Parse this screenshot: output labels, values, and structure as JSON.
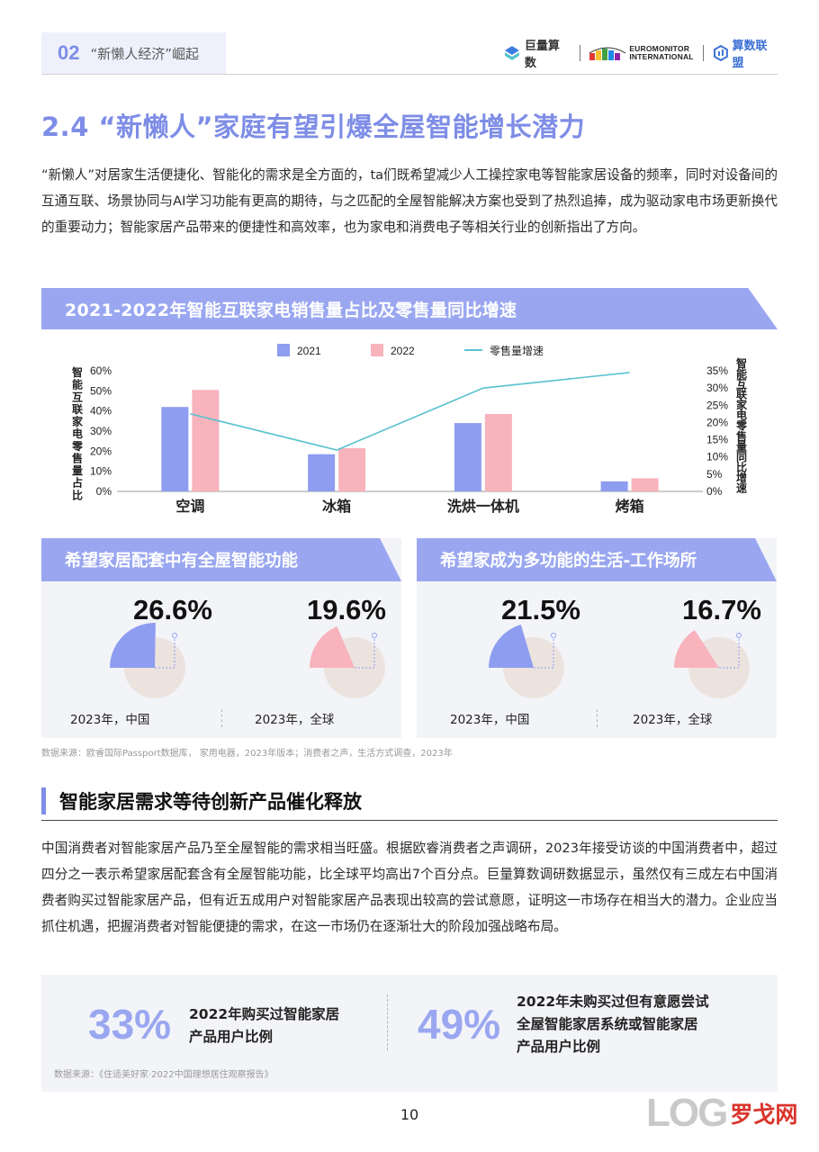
{
  "header": {
    "section_num": "02",
    "section_title": "“新懒人经济”崛起",
    "logos": [
      {
        "name": "巨量算数"
      },
      {
        "name": "EUROMONITOR INTERNATIONAL",
        "line1": "EUROMONITOR",
        "line2": "INTERNATIONAL"
      },
      {
        "name": "算数联盟"
      }
    ]
  },
  "section": {
    "title": "2.4 “新懒人”家庭有望引爆全屋智能增长潜力",
    "intro": "“新懒人”对居家生活便捷化、智能化的需求是全方面的，ta们既希望减少人工操控家电等智能家居设备的频率，同时对设备间的互通互联、场景协同与AI学习功能有更高的期待，与之匹配的全屋智能解决方案也受到了热烈追捧，成为驱动家电市场更新换代的重要动力；智能家居产品带来的便捷性和高效率，也为家电和消费电子等相关行业的创新指出了方向。"
  },
  "chart_data": [
    {
      "type": "bar",
      "title": "2021-2022年智能互联家电销售量占比及零售量同比增速",
      "categories": [
        "空调",
        "冰箱",
        "洗烘一体机",
        "烤箱"
      ],
      "series": [
        {
          "name": "2021",
          "values": [
            42,
            18.5,
            34,
            5
          ],
          "color": "#8e9df0"
        },
        {
          "name": "2022",
          "values": [
            50.5,
            21.5,
            38.5,
            6.5
          ],
          "color": "#f8b3bd"
        },
        {
          "name": "零售量增速",
          "type": "line",
          "axis": "right",
          "values": [
            22.5,
            12,
            30,
            34.5
          ],
          "color": "#57c2cf"
        }
      ],
      "ylabel": "智能互联家电零售量占比",
      "y2label": "智能互联家电零售量同比增速",
      "ylim": [
        0,
        60
      ],
      "y2lim": [
        0,
        35
      ],
      "yticks": [
        "0%",
        "10%",
        "20%",
        "30%",
        "40%",
        "50%",
        "60%"
      ],
      "y2ticks": [
        "0%",
        "5%",
        "10%",
        "15%",
        "20%",
        "25%",
        "30%",
        "35%"
      ],
      "legend": "top-center",
      "grid": false
    },
    {
      "type": "pie",
      "title": "希望家居配套中有全屋智能功能",
      "slices": [
        {
          "label": "2023年，中国",
          "value": 26.6,
          "display": "26.6%",
          "color": "#8e9df0"
        },
        {
          "label": "2023年，全球",
          "value": 19.6,
          "display": "19.6%",
          "color": "#f8b3bd"
        }
      ]
    },
    {
      "type": "pie",
      "title": "希望家成为多功能的生活-工作场所",
      "slices": [
        {
          "label": "2023年，中国",
          "value": 21.5,
          "display": "21.5%",
          "color": "#8e9df0"
        },
        {
          "label": "2023年，全球",
          "value": 16.7,
          "display": "16.7%",
          "color": "#f8b3bd"
        }
      ]
    }
  ],
  "source1": "数据来源：欧睿国际Passport数据库， 家用电器，2023年版本；消费者之声，生活方式调查，2023年",
  "section2": {
    "title": "智能家居需求等待创新产品催化释放",
    "paragraph": "中国消费者对智能家居产品乃至全屋智能的需求相当旺盛。根据欧睿消费者之声调研，2023年接受访谈的中国消费者中，超过四分之一表示希望家居配套含有全屋智能功能，比全球平均高出7个百分点。巨量算数调研数据显示，虽然仅有三成左右中国消费者购买过智能家居产品，但有近五成用户对智能家居产品表现出较高的尝试意愿，证明这一市场存在相当大的潜力。企业应当抓住机遇，把握消费者对智能便捷的需求，在这一市场仍在逐渐壮大的阶段加强战略布局。",
    "stats": [
      {
        "value": "33%",
        "line1": "2022年购买过智能家居",
        "line2": "产品用户比例",
        "line3": ""
      },
      {
        "value": "49%",
        "line1": "2022年未购买过但有意愿尝试",
        "line2": "全屋智能家居系统或智能家居",
        "line3": "产品用户比例"
      }
    ],
    "source": "数据来源：《住适美好家·2022中国理想居住观察报告》"
  },
  "page_number": "10",
  "watermark": {
    "log": "LOG",
    "cn": "罗戈网"
  },
  "colors": {
    "accent": "#7e8de6",
    "band": "#9aa7f0",
    "pink": "#f8b3bd",
    "teal": "#57c2cf",
    "panel": "#f3f4f8"
  }
}
